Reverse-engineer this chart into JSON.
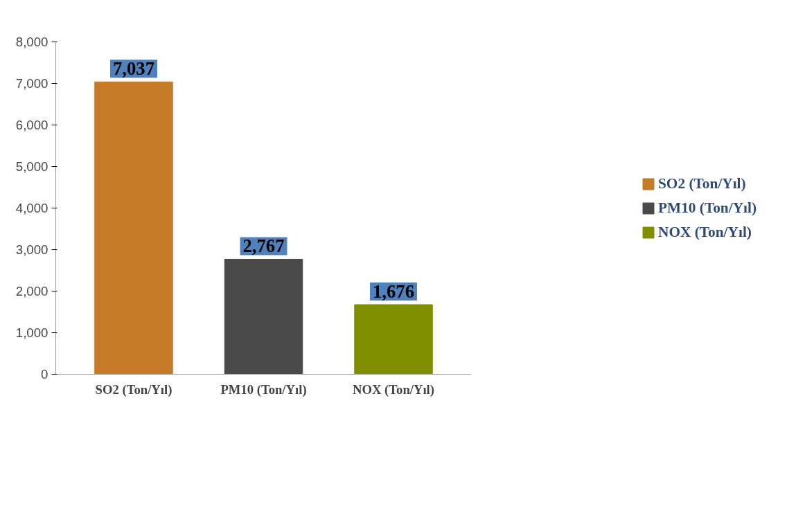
{
  "chart_data": {
    "type": "bar",
    "categories": [
      "SO2 (Ton/Yıl)",
      "PM10 (Ton/Yıl)",
      "NOX (Ton/Yıl)"
    ],
    "series": [
      {
        "name": "SO2 (Ton/Yıl)",
        "color": "#c47a27",
        "values": [
          7037,
          null,
          null
        ],
        "value_labels": [
          "7,037",
          null,
          null
        ]
      },
      {
        "name": "PM10 (Ton/Yıl)",
        "color": "#4a4a4a",
        "values": [
          null,
          2767,
          null
        ],
        "value_labels": [
          null,
          "2,767",
          null
        ]
      },
      {
        "name": "NOX (Ton/Yıl)",
        "color": "#7f8f00",
        "values": [
          null,
          null,
          1676
        ],
        "value_labels": [
          null,
          null,
          "1,676"
        ]
      }
    ],
    "stacked": true,
    "ylim": [
      0,
      8000
    ],
    "yticks": [
      0,
      {
        "value": 1000,
        "label": "1,000"
      },
      {
        "value": 2000,
        "label": "2,000"
      },
      {
        "value": 3000,
        "label": "3,000"
      },
      {
        "value": 4000,
        "label": "4,000"
      },
      {
        "value": 5000,
        "label": "5,000"
      },
      {
        "value": 6000,
        "label": "6,000"
      },
      {
        "value": 7000,
        "label": "7,000"
      },
      {
        "value": 8000,
        "label": "8,000"
      }
    ],
    "grid": false,
    "legend": "right"
  }
}
